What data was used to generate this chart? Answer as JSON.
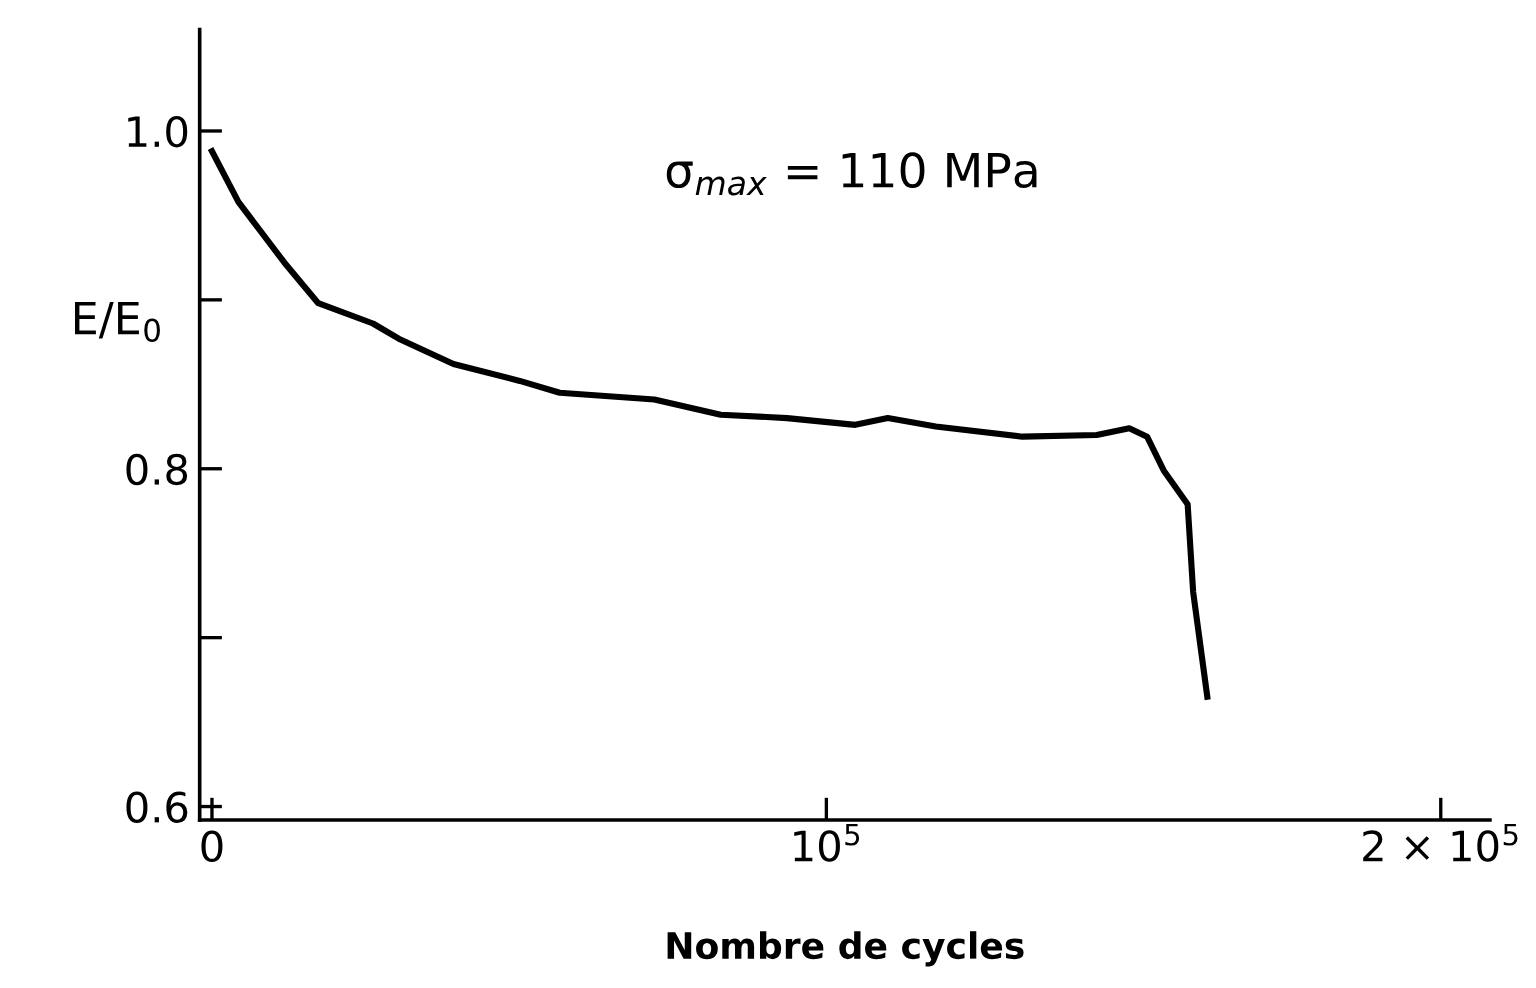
{
  "chart_data": {
    "type": "line",
    "xlabel": "Nombre de cycles",
    "ylabel": "E/E$_{0}$",
    "annotations": [
      "σ$_{max}$ = 110 MPa"
    ],
    "x": [
      0,
      4300,
      11800,
      17300,
      26200,
      30400,
      39300,
      50100,
      56600,
      72000,
      82800,
      93600,
      104700,
      110000,
      117800,
      131900,
      144000,
      149300,
      152200,
      154900,
      158800,
      159700,
      162000
    ],
    "series": [
      {
        "color": "#000000",
        "values": [
          0.988,
          0.958,
          0.922,
          0.898,
          0.886,
          0.877,
          0.862,
          0.852,
          0.845,
          0.841,
          0.832,
          0.83,
          0.826,
          0.83,
          0.825,
          0.819,
          0.82,
          0.824,
          0.819,
          0.799,
          0.779,
          0.727,
          0.665
        ]
      }
    ],
    "xlim": [
      -2000,
      208000
    ],
    "ylim": [
      0.592,
      1.06
    ],
    "xticks": [
      0,
      {
        "value": 100000,
        "label": "10$^{5}$"
      },
      {
        "value": 200000,
        "label": "2 × 10$^{5}$"
      }
    ],
    "yticks": [
      0.6,
      {
        "value": 0.7,
        "label": null
      },
      0.8,
      {
        "value": 0.9,
        "label": null
      },
      {
        "value": 1.0,
        "label": "1.0"
      }
    ],
    "grid": false,
    "legend": false,
    "marker": "none",
    "line_style": "solid"
  }
}
